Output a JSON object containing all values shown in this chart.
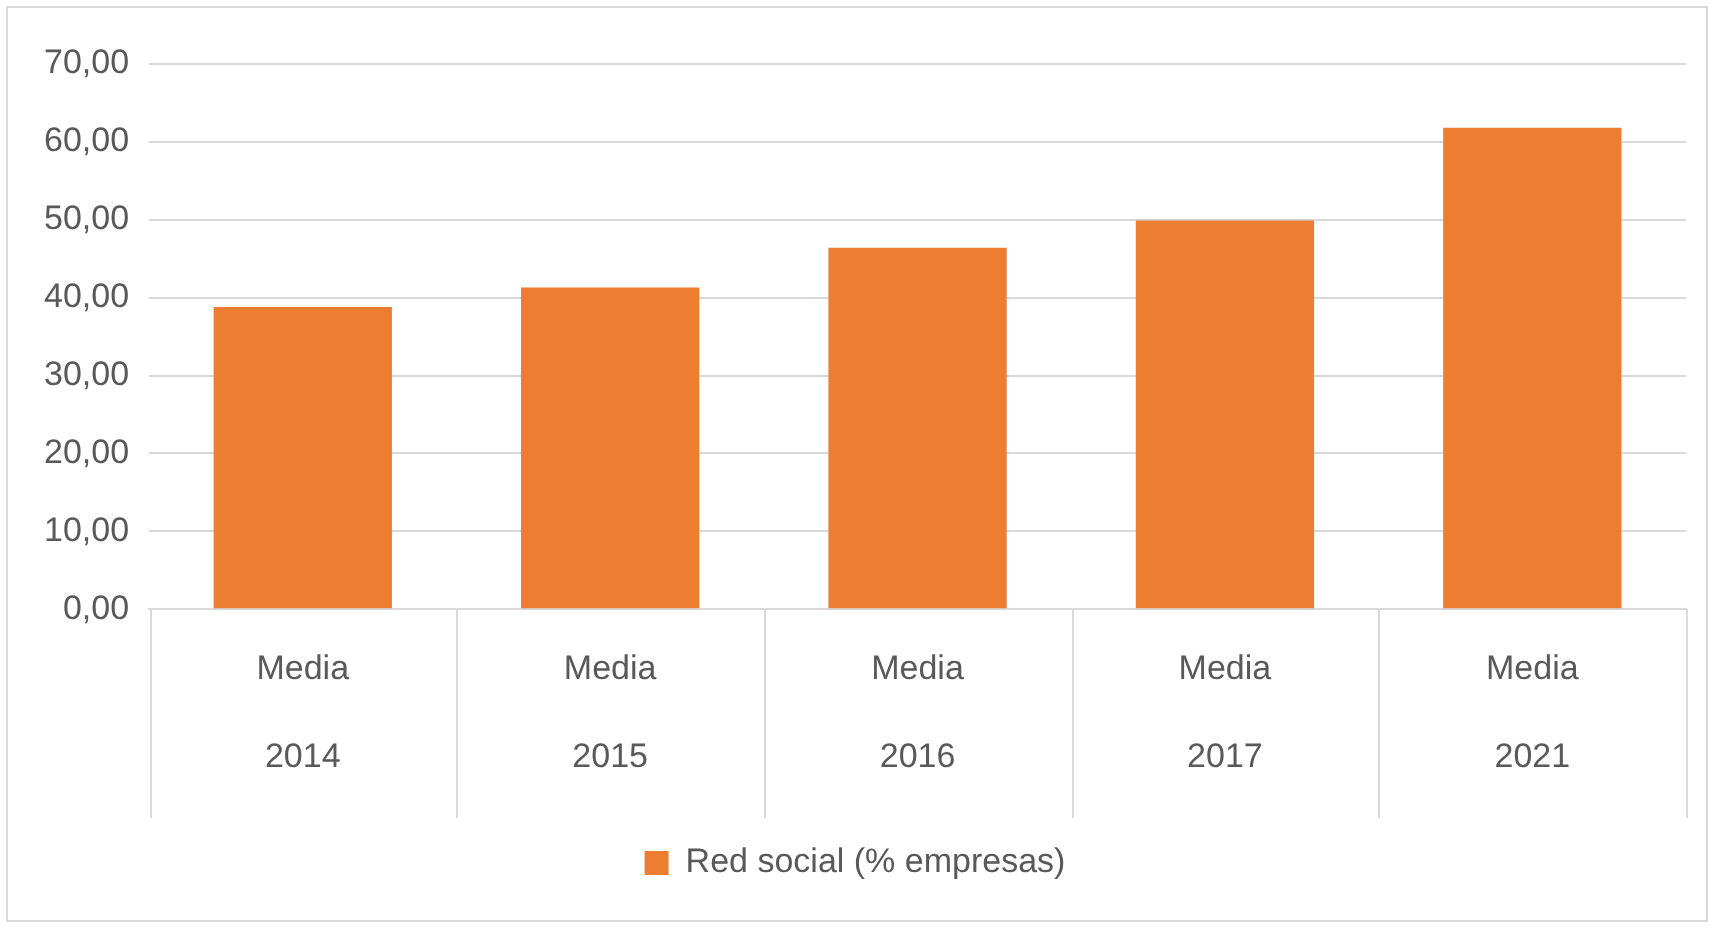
{
  "chart_data": {
    "type": "bar",
    "categories": [
      "Media\n2014",
      "Media\n2015",
      "Media\n2016",
      "Media\n2017",
      "Media\n2021"
    ],
    "series": [
      {
        "name": "Red social (% empresas)",
        "color": "#ed7d31",
        "values": [
          38.8,
          41.3,
          46.4,
          49.9,
          61.8
        ]
      }
    ],
    "ylim": [
      0,
      70
    ],
    "yticks": [
      {
        "value": 0,
        "label": "0,00"
      },
      {
        "value": 10,
        "label": "10,00"
      },
      {
        "value": 20,
        "label": "20,00"
      },
      {
        "value": 30,
        "label": "30,00"
      },
      {
        "value": 40,
        "label": "40,00"
      },
      {
        "value": 50,
        "label": "50,00"
      },
      {
        "value": 60,
        "label": "60,00"
      },
      {
        "value": 70,
        "label": "70,00"
      }
    ],
    "grid": "y",
    "legend": "bottom"
  }
}
